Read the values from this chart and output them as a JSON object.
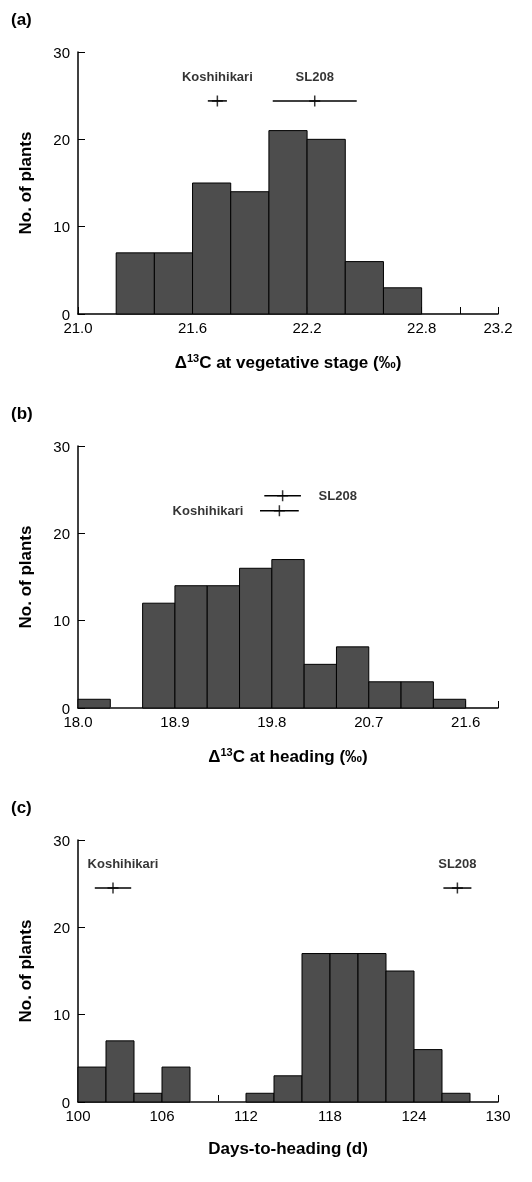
{
  "chart_data": [
    {
      "type": "histogram",
      "title": "(a)",
      "xlabel": "Δ$^{13}$C at vegetative stage (‰)",
      "ylabel": "No. of plants",
      "color": "#4d4d4d",
      "bins": [
        21.2,
        21.4,
        21.6,
        21.8,
        22.0,
        22.2,
        22.4,
        22.6,
        22.8
      ],
      "values": [
        7,
        7,
        15,
        14,
        21,
        20,
        6,
        3
      ],
      "xlim": [
        21.0,
        23.2
      ],
      "xticks": [
        {
          "value": 21.0,
          "label": "21.0"
        },
        21.6,
        22.2,
        22.8,
        {
          "value": 23.0,
          "label": null
        },
        23.2
      ],
      "ylim": [
        0,
        30
      ],
      "yticks": [
        0,
        10,
        20,
        30
      ],
      "grid": false,
      "marker": "cross",
      "series": [
        {
          "type": "scatter",
          "name": "Koshihikari",
          "color": "#000000",
          "x": [
            21.73
          ],
          "values": [
            24.4
          ],
          "xerrors": [
            0.05
          ]
        },
        {
          "type": "scatter",
          "name": "SL208",
          "color": "#000000",
          "x": [
            22.24
          ],
          "values": [
            24.4
          ],
          "xerrors": [
            0.22
          ]
        }
      ]
    },
    {
      "type": "histogram",
      "title": "(b)",
      "xlabel": "Δ$^{13}$C at heading (‰)",
      "ylabel": "No. of plants",
      "color": "#4d4d4d",
      "bins": [
        18.0,
        18.3,
        18.6,
        18.9,
        19.2,
        19.5,
        19.8,
        20.1,
        20.4,
        20.7,
        21.0,
        21.3,
        21.6
      ],
      "values": [
        1,
        0,
        12,
        14,
        14,
        16,
        17,
        5,
        7,
        3,
        3,
        1
      ],
      "xlim": [
        18.0,
        21.9
      ],
      "xticks": [
        {
          "value": 18.0,
          "label": "18.0"
        },
        18.9,
        19.8,
        20.7,
        21.6,
        {
          "value": 21.9,
          "label": null
        }
      ],
      "ylim": [
        0,
        30
      ],
      "yticks": [
        0,
        10,
        20,
        30
      ],
      "grid": false,
      "marker": "cross",
      "series": [
        {
          "type": "scatter",
          "name": "SL208",
          "color": "#000000",
          "x": [
            19.9
          ],
          "values": [
            24.3
          ],
          "xerrors": [
            0.17
          ]
        },
        {
          "type": "scatter",
          "name": "Koshihikari",
          "color": "#000000",
          "x": [
            19.87
          ],
          "values": [
            22.6
          ],
          "xerrors": [
            0.18
          ]
        }
      ]
    },
    {
      "type": "histogram",
      "title": "(c)",
      "xlabel": "Days-to-heading (d)",
      "ylabel": "No. of plants",
      "color": "#4d4d4d",
      "bins": [
        100,
        102,
        104,
        106,
        108,
        110,
        112,
        114,
        116,
        118,
        120,
        122,
        124,
        126,
        128
      ],
      "values": [
        4,
        7,
        1,
        4,
        0,
        0,
        1,
        3,
        17,
        17,
        17,
        15,
        6,
        1
      ],
      "xlim": [
        100,
        130
      ],
      "xticks": [
        100,
        106,
        {
          "value": 110,
          "label": null
        },
        112,
        118,
        124,
        130
      ],
      "ylim": [
        0,
        30
      ],
      "yticks": [
        0,
        10,
        20,
        30
      ],
      "grid": false,
      "marker": "cross",
      "series": [
        {
          "type": "scatter",
          "name": "Koshihikari",
          "color": "#000000",
          "x": [
            102.5
          ],
          "values": [
            24.5
          ],
          "xerrors": [
            1.3
          ]
        },
        {
          "type": "scatter",
          "name": "SL208",
          "color": "#000000",
          "x": [
            127.1
          ],
          "values": [
            24.5
          ],
          "xerrors": [
            1.0
          ]
        }
      ]
    }
  ]
}
